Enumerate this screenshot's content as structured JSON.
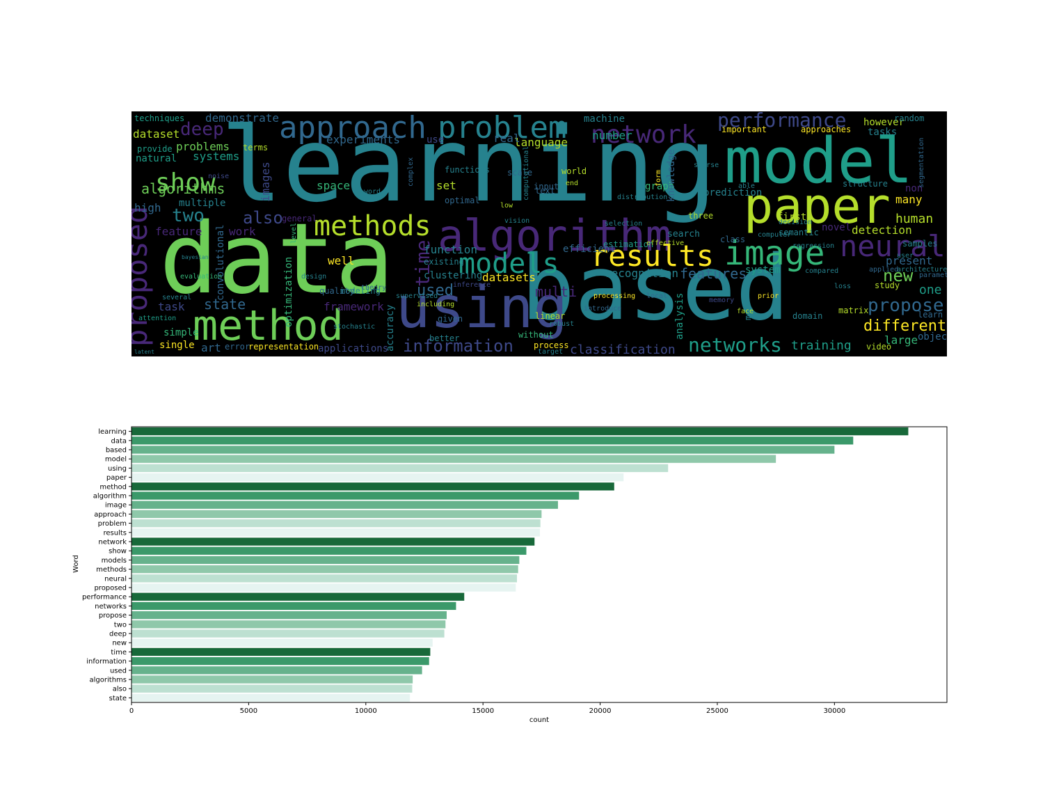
{
  "chart_data": [
    {
      "type": "wordcloud",
      "colormap": [
        "#440154",
        "#482878",
        "#3e4989",
        "#31688e",
        "#26828e",
        "#1f9e89",
        "#35b779",
        "#6ece58",
        "#b5de2b",
        "#fde725"
      ],
      "background": "#000000",
      "words": [
        {
          "text": "learning",
          "color": "#26828e"
        },
        {
          "text": "data",
          "color": "#6ece58"
        },
        {
          "text": "based",
          "color": "#26828e"
        },
        {
          "text": "model",
          "color": "#1f9e89"
        },
        {
          "text": "using",
          "color": "#3e4989"
        },
        {
          "text": "paper",
          "color": "#b5de2b"
        },
        {
          "text": "method",
          "color": "#6ece58"
        },
        {
          "text": "algorithm",
          "color": "#482878"
        },
        {
          "text": "image",
          "color": "#35b779"
        },
        {
          "text": "approach",
          "color": "#31688e"
        },
        {
          "text": "problem",
          "color": "#26828e"
        },
        {
          "text": "results",
          "color": "#fde725"
        },
        {
          "text": "network",
          "color": "#482878"
        },
        {
          "text": "show",
          "color": "#6ece58"
        },
        {
          "text": "models",
          "color": "#1f9e89"
        },
        {
          "text": "methods",
          "color": "#b5de2b"
        },
        {
          "text": "neural",
          "color": "#482878"
        },
        {
          "text": "proposed",
          "color": "#482878"
        },
        {
          "text": "performance",
          "color": "#3e4989"
        },
        {
          "text": "networks",
          "color": "#1f9e89"
        },
        {
          "text": "propose",
          "color": "#31688e"
        },
        {
          "text": "two",
          "color": "#26828e"
        },
        {
          "text": "deep",
          "color": "#482878"
        },
        {
          "text": "new",
          "color": "#6ece58"
        },
        {
          "text": "time",
          "color": "#482878"
        },
        {
          "text": "information",
          "color": "#3e4989"
        },
        {
          "text": "used",
          "color": "#31688e"
        },
        {
          "text": "algorithms",
          "color": "#6ece58"
        },
        {
          "text": "also",
          "color": "#3e4989"
        },
        {
          "text": "state",
          "color": "#31688e"
        },
        {
          "text": "different",
          "color": "#fde725"
        },
        {
          "text": "training",
          "color": "#1f9e89"
        },
        {
          "text": "classification",
          "color": "#3e4989"
        },
        {
          "text": "features",
          "color": "#31688e"
        },
        {
          "text": "recognition",
          "color": "#26828e"
        },
        {
          "text": "large",
          "color": "#35b779"
        },
        {
          "text": "object",
          "color": "#31688e"
        },
        {
          "text": "detection",
          "color": "#b5de2b"
        },
        {
          "text": "human",
          "color": "#b5de2b"
        },
        {
          "text": "many",
          "color": "#fde725"
        },
        {
          "text": "present",
          "color": "#31688e"
        },
        {
          "text": "one",
          "color": "#1f9e89"
        },
        {
          "text": "demonstrate",
          "color": "#31688e"
        },
        {
          "text": "dataset",
          "color": "#b5de2b"
        },
        {
          "text": "techniques",
          "color": "#1f9e89"
        },
        {
          "text": "problems",
          "color": "#6ece58"
        },
        {
          "text": "systems",
          "color": "#1f9e89"
        },
        {
          "text": "natural",
          "color": "#1f9e89"
        },
        {
          "text": "provide",
          "color": "#1f9e89"
        },
        {
          "text": "high",
          "color": "#31688e"
        },
        {
          "text": "multiple",
          "color": "#26828e"
        },
        {
          "text": "feature",
          "color": "#482878"
        },
        {
          "text": "work",
          "color": "#482878"
        },
        {
          "text": "well",
          "color": "#fde725"
        },
        {
          "text": "experiments",
          "color": "#31688e"
        },
        {
          "text": "space",
          "color": "#35b779"
        },
        {
          "text": "set",
          "color": "#b5de2b"
        },
        {
          "text": "datasets",
          "color": "#fde725"
        },
        {
          "text": "function",
          "color": "#26828e"
        },
        {
          "text": "existing",
          "color": "#26828e"
        },
        {
          "text": "clustering",
          "color": "#26828e"
        },
        {
          "text": "framework",
          "color": "#482878"
        },
        {
          "text": "optimization",
          "color": "#35b779"
        },
        {
          "text": "convolutional",
          "color": "#31688e"
        },
        {
          "text": "images",
          "color": "#3e4989"
        },
        {
          "text": "task",
          "color": "#3e4989"
        },
        {
          "text": "simple",
          "color": "#35b779"
        },
        {
          "text": "single",
          "color": "#fde725"
        },
        {
          "text": "art",
          "color": "#31688e"
        },
        {
          "text": "error",
          "color": "#31688e"
        },
        {
          "text": "representation",
          "color": "#fde725"
        },
        {
          "text": "applications",
          "color": "#3e4989"
        },
        {
          "text": "accuracy",
          "color": "#26828e"
        },
        {
          "text": "multi",
          "color": "#482878"
        },
        {
          "text": "process",
          "color": "#fde725"
        },
        {
          "text": "without",
          "color": "#35b779"
        },
        {
          "text": "machine",
          "color": "#26828e"
        },
        {
          "text": "number",
          "color": "#1f9e89"
        },
        {
          "text": "language",
          "color": "#b5de2b"
        },
        {
          "text": "real",
          "color": "#31688e"
        },
        {
          "text": "use",
          "color": "#3e4989"
        },
        {
          "text": "important",
          "color": "#fde725"
        },
        {
          "text": "approaches",
          "color": "#fde725"
        },
        {
          "text": "however",
          "color": "#b5de2b"
        },
        {
          "text": "tasks",
          "color": "#26828e"
        },
        {
          "text": "random",
          "color": "#26828e"
        },
        {
          "text": "structure",
          "color": "#26828e"
        },
        {
          "text": "first",
          "color": "#b5de2b"
        },
        {
          "text": "non",
          "color": "#482878"
        },
        {
          "text": "graph",
          "color": "#35b779"
        },
        {
          "text": "knowledge",
          "color": "#31688e"
        },
        {
          "text": "world",
          "color": "#b5de2b"
        },
        {
          "text": "prediction",
          "color": "#26828e"
        },
        {
          "text": "novel",
          "color": "#482878"
        },
        {
          "text": "system",
          "color": "#1f9e89"
        },
        {
          "text": "semantic",
          "color": "#26828e"
        },
        {
          "text": "analysis",
          "color": "#1f9e89"
        },
        {
          "text": "estimation",
          "color": "#1f9e89"
        },
        {
          "text": "efficient",
          "color": "#31688e"
        },
        {
          "text": "search",
          "color": "#26828e"
        },
        {
          "text": "linear",
          "color": "#b5de2b"
        },
        {
          "text": "text",
          "color": "#31688e"
        },
        {
          "text": "scale",
          "color": "#31688e"
        },
        {
          "text": "input",
          "color": "#31688e"
        },
        {
          "text": "optimal",
          "color": "#31688e"
        },
        {
          "text": "functions",
          "color": "#26828e"
        },
        {
          "text": "modeling",
          "color": "#26828e"
        },
        {
          "text": "quality",
          "color": "#31688e"
        },
        {
          "text": "given",
          "color": "#31688e"
        },
        {
          "text": "better",
          "color": "#26828e"
        },
        {
          "text": "several",
          "color": "#26828e"
        },
        {
          "text": "attention",
          "color": "#1f9e89"
        },
        {
          "text": "general",
          "color": "#482878"
        },
        {
          "text": "three",
          "color": "#b5de2b"
        },
        {
          "text": "class",
          "color": "#31688e"
        },
        {
          "text": "study",
          "color": "#b5de2b"
        },
        {
          "text": "learn",
          "color": "#31688e"
        },
        {
          "text": "video",
          "color": "#b5de2b"
        },
        {
          "text": "matrix",
          "color": "#b5de2b"
        },
        {
          "text": "domain",
          "color": "#26828e"
        },
        {
          "text": "loss",
          "color": "#26828e"
        },
        {
          "text": "compared",
          "color": "#26828e"
        },
        {
          "text": "local",
          "color": "#31688e"
        },
        {
          "text": "introduce",
          "color": "#31688e"
        },
        {
          "text": "design",
          "color": "#26828e"
        },
        {
          "text": "may",
          "color": "#26828e"
        },
        {
          "text": "architecture",
          "color": "#26828e"
        },
        {
          "text": "parameters",
          "color": "#31688e"
        },
        {
          "text": "level",
          "color": "#35b779"
        },
        {
          "text": "evaluation",
          "color": "#35b779"
        },
        {
          "text": "bayesian",
          "color": "#26828e"
        },
        {
          "text": "noise",
          "color": "#3e4989"
        },
        {
          "text": "terms",
          "color": "#b5de2b"
        },
        {
          "text": "able",
          "color": "#26828e"
        },
        {
          "text": "sparse",
          "color": "#26828e"
        },
        {
          "text": "low",
          "color": "#b5de2b"
        },
        {
          "text": "form",
          "color": "#fde725"
        },
        {
          "text": "end",
          "color": "#b5de2b"
        },
        {
          "text": "distribution",
          "color": "#26828e"
        },
        {
          "text": "segmentation",
          "color": "#31688e"
        },
        {
          "text": "samples",
          "color": "#26828e"
        },
        {
          "text": "supervised",
          "color": "#26828e"
        },
        {
          "text": "inference",
          "color": "#3e4989"
        },
        {
          "text": "robust",
          "color": "#26828e"
        },
        {
          "text": "memory",
          "color": "#3e4989"
        },
        {
          "text": "face",
          "color": "#b5de2b"
        },
        {
          "text": "prior",
          "color": "#fde725"
        },
        {
          "text": "computer",
          "color": "#26828e"
        },
        {
          "text": "applied",
          "color": "#31688e"
        },
        {
          "text": "user",
          "color": "#26828e"
        },
        {
          "text": "effective",
          "color": "#b5de2b"
        },
        {
          "text": "including",
          "color": "#b5de2b"
        },
        {
          "text": "regression",
          "color": "#26828e"
        },
        {
          "text": "decision",
          "color": "#26828e"
        },
        {
          "text": "target",
          "color": "#26828e"
        },
        {
          "text": "selection",
          "color": "#26828e"
        },
        {
          "text": "vision",
          "color": "#26828e"
        },
        {
          "text": "latent",
          "color": "#26828e"
        },
        {
          "text": "word",
          "color": "#26828e"
        },
        {
          "text": "stochastic",
          "color": "#26828e"
        },
        {
          "text": "theory",
          "color": "#31688e"
        },
        {
          "text": "complex",
          "color": "#31688e"
        },
        {
          "text": "computational",
          "color": "#26828e"
        },
        {
          "text": "processing",
          "color": "#fde725"
        },
        {
          "text": "visual",
          "color": "#31688e"
        },
        {
          "text": "context",
          "color": "#31688e"
        }
      ]
    },
    {
      "type": "bar",
      "orientation": "horizontal",
      "categories": [
        "learning",
        "data",
        "based",
        "model",
        "using",
        "paper",
        "method",
        "algorithm",
        "image",
        "approach",
        "problem",
        "results",
        "network",
        "show",
        "models",
        "methods",
        "neural",
        "proposed",
        "performance",
        "networks",
        "propose",
        "two",
        "deep",
        "new",
        "time",
        "information",
        "used",
        "algorithms",
        "also",
        "state"
      ],
      "values": [
        33150,
        30800,
        30000,
        27500,
        22900,
        21000,
        20600,
        19100,
        18200,
        17500,
        17450,
        17430,
        17200,
        16850,
        16550,
        16500,
        16450,
        16400,
        14200,
        13850,
        13450,
        13400,
        13350,
        12850,
        12750,
        12700,
        12400,
        12000,
        11980,
        11880
      ],
      "bar_colors": [
        "#18693a",
        "#3b996a",
        "#66b28c",
        "#8fc8aa",
        "#bde0d1",
        "#e6f4f1"
      ],
      "xlabel": "count",
      "ylabel": "Word",
      "xlim": [
        0,
        34800
      ],
      "xticks": [
        0,
        5000,
        10000,
        15000,
        20000,
        25000,
        30000
      ],
      "legend": "none",
      "grid": false
    }
  ]
}
